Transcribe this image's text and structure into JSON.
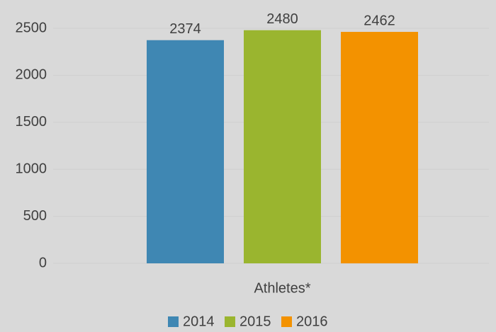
{
  "chart_data": {
    "type": "bar",
    "categories": [
      "Athletes*"
    ],
    "series": [
      {
        "name": "2014",
        "color": "#3f87b3",
        "values": [
          2374
        ]
      },
      {
        "name": "2015",
        "color": "#9ab52f",
        "values": [
          2480
        ]
      },
      {
        "name": "2016",
        "color": "#f39200",
        "values": [
          2462
        ]
      }
    ],
    "ylim": [
      0,
      2500
    ],
    "yticks": [
      0,
      500,
      1000,
      1500,
      2000,
      2500
    ],
    "grid": true,
    "legend": "bottom"
  }
}
